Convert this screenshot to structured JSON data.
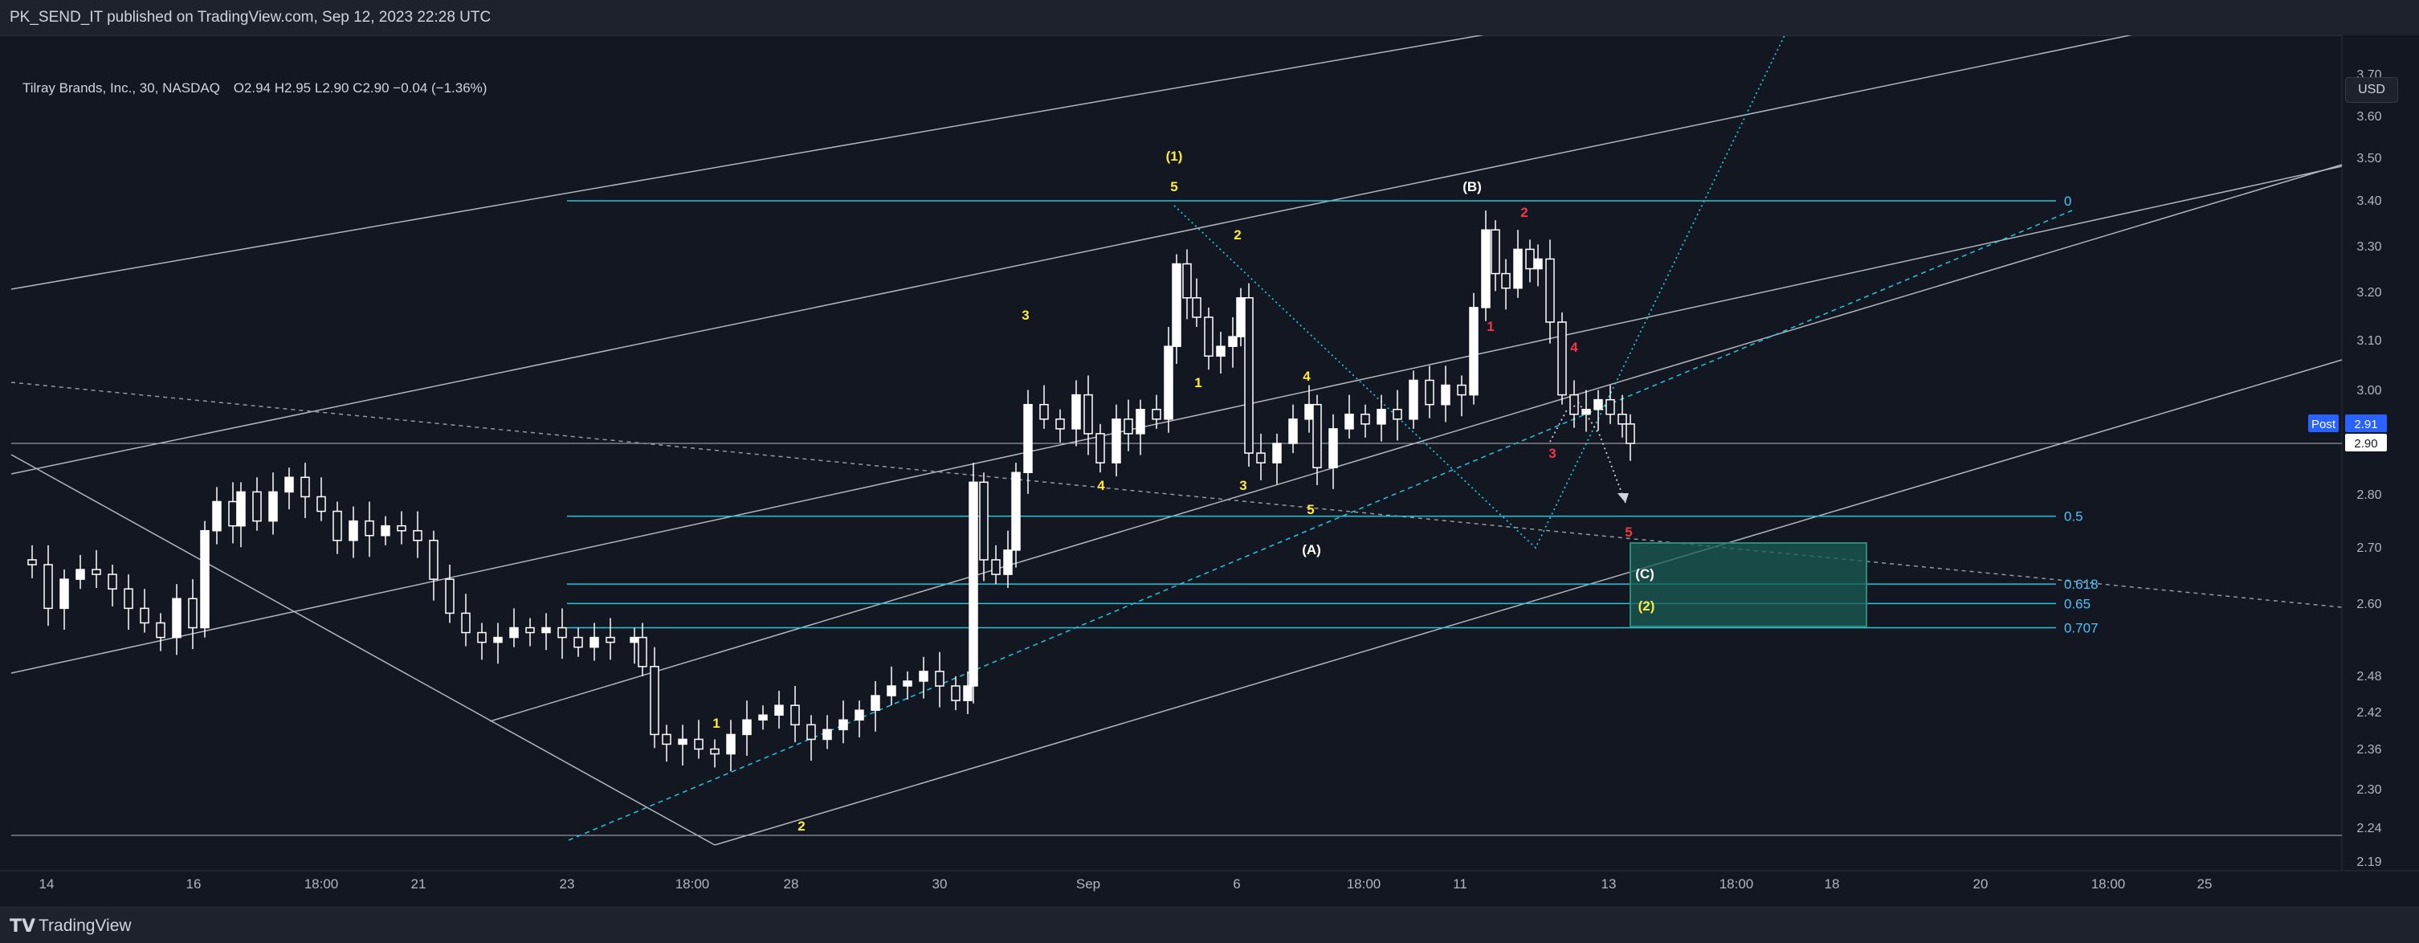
{
  "header": {
    "published_line": "PK_SEND_IT published on TradingView.com, Sep 12, 2023 22:28 UTC"
  },
  "legend": {
    "symbol": "Tilray Brands, Inc., 30, NASDAQ",
    "open_label": "O",
    "open": "2.94",
    "high_label": "H",
    "high": "2.95",
    "low_label": "L",
    "low": "2.90",
    "close_label": "C",
    "close": "2.90",
    "change": "−0.04 (−1.36%)"
  },
  "currency_button": "USD",
  "footer": {
    "brand": "TradingView",
    "logo_icon": "tradingview-logo-icon"
  },
  "colors": {
    "background": "#131722",
    "candle": "#ffffff",
    "fib_line": "#26c6da",
    "fib_text": "#4fc3f7",
    "wave_yellow": "#ffeb3b",
    "wave_red": "#f23645",
    "box_fill": "#1b5e55",
    "box_border": "#2a8a7c",
    "post_badge": "#2962ff"
  },
  "chart_data": {
    "type": "candlestick",
    "y_axis": {
      "ticks": [
        "3.70",
        "3.60",
        "3.50",
        "3.40",
        "3.30",
        "3.20",
        "3.10",
        "3.00",
        "2.80",
        "2.70",
        "2.60",
        "2.48",
        "2.42",
        "2.36",
        "2.30",
        "2.24",
        "2.19"
      ],
      "range": [
        2.19,
        3.72
      ]
    },
    "x_axis": {
      "ticks": [
        "14",
        "16",
        "18:00",
        "21",
        "23",
        "18:00",
        "28",
        "30",
        "Sep",
        "6",
        "18:00",
        "11",
        "13",
        "18:00",
        "18",
        "20",
        "18:00",
        "25"
      ]
    },
    "price_labels": {
      "post_label": "Post",
      "post_value": "2.91",
      "last_value": "2.90",
      "last_price": 2.9
    },
    "fib_levels": [
      {
        "label": "0",
        "price": 3.4
      },
      {
        "label": "0.5",
        "price": 2.75
      },
      {
        "label": "0.618",
        "price": 2.61
      },
      {
        "label": "0.65",
        "price": 2.57
      },
      {
        "label": "0.707",
        "price": 2.52
      }
    ],
    "wave_labels": [
      {
        "text": "(1)",
        "color": "yellow"
      },
      {
        "text": "5",
        "color": "yellow"
      },
      {
        "text": "2",
        "color": "yellow"
      },
      {
        "text": "3",
        "color": "yellow"
      },
      {
        "text": "1",
        "color": "yellow"
      },
      {
        "text": "4",
        "color": "yellow"
      },
      {
        "text": "4",
        "color": "yellow"
      },
      {
        "text": "3",
        "color": "yellow"
      },
      {
        "text": "5",
        "color": "yellow"
      },
      {
        "text": "(A)",
        "color": "white"
      },
      {
        "text": "(B)",
        "color": "white"
      },
      {
        "text": "2",
        "color": "red"
      },
      {
        "text": "1",
        "color": "red"
      },
      {
        "text": "4",
        "color": "red"
      },
      {
        "text": "3",
        "color": "red"
      },
      {
        "text": "5",
        "color": "red"
      },
      {
        "text": "(C)",
        "color": "white"
      },
      {
        "text": "(2)",
        "color": "yellow"
      },
      {
        "text": "1",
        "color": "yellow"
      },
      {
        "text": "2",
        "color": "yellow"
      }
    ]
  }
}
